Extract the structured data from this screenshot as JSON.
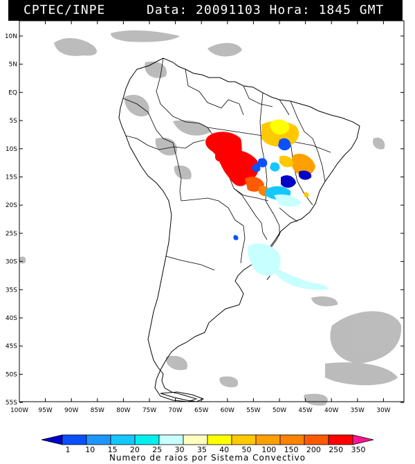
{
  "header": {
    "source": "CPTEC/INPE",
    "timestamp": "Data: 20091103 Hora: 1845 GMT"
  },
  "map": {
    "lat_labels": [
      "10N",
      "5N",
      "EQ",
      "5S",
      "10S",
      "15S",
      "20S",
      "25S",
      "30S",
      "35S",
      "40S",
      "45S",
      "50S",
      "55S"
    ],
    "lon_labels": [
      "100W",
      "95W",
      "90W",
      "85W",
      "80W",
      "75W",
      "70W",
      "65W",
      "60W",
      "55W",
      "50W",
      "45W",
      "40W",
      "35W",
      "30W"
    ]
  },
  "legend": {
    "values": [
      "1",
      "10",
      "15",
      "20",
      "25",
      "30",
      "35",
      "40",
      "50",
      "100",
      "150",
      "200",
      "250",
      "350"
    ],
    "colors": [
      "#0000c8",
      "#0a50ff",
      "#1e96ff",
      "#14c8ff",
      "#00f0f0",
      "#c8ffff",
      "#ffffc0",
      "#ffff00",
      "#ffc800",
      "#ffa000",
      "#ff8200",
      "#ff5a00",
      "#ff0000",
      "#ff1493"
    ],
    "caption": "Numero de raios por Sistema Convectivo"
  },
  "colors": {
    "cloud_gray": "#a8a8a8",
    "outline": "#000000"
  }
}
